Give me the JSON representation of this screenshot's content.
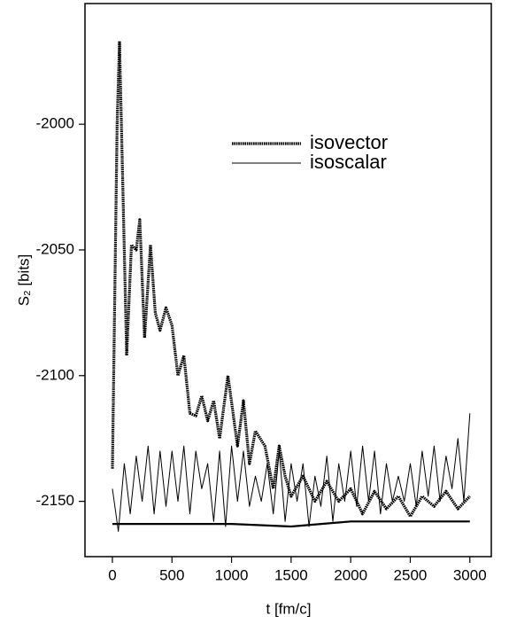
{
  "chart_data": {
    "type": "line",
    "x_label": "t [fm/c]",
    "y_label": "S₂ [bits]",
    "xlim": [
      -230,
      3180
    ],
    "ylim": [
      -2172,
      -1952
    ],
    "xticks": [
      0,
      500,
      1000,
      1500,
      2000,
      2500,
      3000
    ],
    "yticks": [
      -2000,
      -2050,
      -2100,
      -2150
    ],
    "legend": "upper right",
    "series": [
      {
        "name": "isovector",
        "color": "#000000",
        "line_style": "dotted",
        "x": [
          0,
          40,
          60,
          90,
          120,
          160,
          200,
          230,
          270,
          320,
          360,
          400,
          450,
          500,
          550,
          600,
          650,
          700,
          750,
          800,
          850,
          900,
          970,
          1050,
          1100,
          1150,
          1200,
          1280,
          1350,
          1400,
          1450,
          1500,
          1600,
          1700,
          1800,
          1900,
          2000,
          2100,
          2200,
          2300,
          2400,
          2500,
          2600,
          2700,
          2800,
          2900,
          3000
        ],
        "values": [
          -2137,
          -2000,
          -1967,
          -2030,
          -2092,
          -2048,
          -2050,
          -2038,
          -2085,
          -2048,
          -2075,
          -2082,
          -2073,
          -2080,
          -2100,
          -2092,
          -2115,
          -2116,
          -2108,
          -2118,
          -2110,
          -2125,
          -2100,
          -2128,
          -2110,
          -2135,
          -2122,
          -2128,
          -2145,
          -2128,
          -2140,
          -2148,
          -2140,
          -2150,
          -2142,
          -2150,
          -2145,
          -2155,
          -2146,
          -2153,
          -2148,
          -2156,
          -2148,
          -2152,
          -2146,
          -2153,
          -2148
        ]
      },
      {
        "name": "isoscalar",
        "color": "#000000",
        "line_style": "solid",
        "x": [
          0,
          50,
          100,
          150,
          200,
          250,
          300,
          350,
          400,
          450,
          500,
          550,
          600,
          650,
          700,
          750,
          800,
          850,
          900,
          950,
          1000,
          1050,
          1100,
          1150,
          1200,
          1250,
          1300,
          1350,
          1400,
          1450,
          1500,
          1550,
          1600,
          1650,
          1700,
          1750,
          1800,
          1850,
          1900,
          1950,
          2000,
          2050,
          2100,
          2150,
          2200,
          2250,
          2300,
          2350,
          2400,
          2450,
          2500,
          2550,
          2600,
          2650,
          2700,
          2750,
          2800,
          2850,
          2900,
          2950,
          3000
        ],
        "values": [
          -2145,
          -2162,
          -2135,
          -2155,
          -2132,
          -2150,
          -2128,
          -2155,
          -2130,
          -2152,
          -2130,
          -2150,
          -2128,
          -2155,
          -2130,
          -2145,
          -2135,
          -2158,
          -2130,
          -2160,
          -2128,
          -2150,
          -2130,
          -2152,
          -2140,
          -2150,
          -2135,
          -2155,
          -2130,
          -2158,
          -2135,
          -2150,
          -2135,
          -2160,
          -2140,
          -2152,
          -2132,
          -2158,
          -2135,
          -2150,
          -2130,
          -2152,
          -2128,
          -2150,
          -2130,
          -2155,
          -2135,
          -2150,
          -2140,
          -2150,
          -2135,
          -2152,
          -2130,
          -2148,
          -2128,
          -2150,
          -2132,
          -2145,
          -2125,
          -2150,
          -2115
        ]
      },
      {
        "color": "#000000",
        "line_style": "thick",
        "x": [
          0,
          500,
          1000,
          1500,
          2000,
          2500,
          3000
        ],
        "values": [
          -2159,
          -2159,
          -2159,
          -2160,
          -2158,
          -2158,
          -2158
        ]
      }
    ]
  }
}
